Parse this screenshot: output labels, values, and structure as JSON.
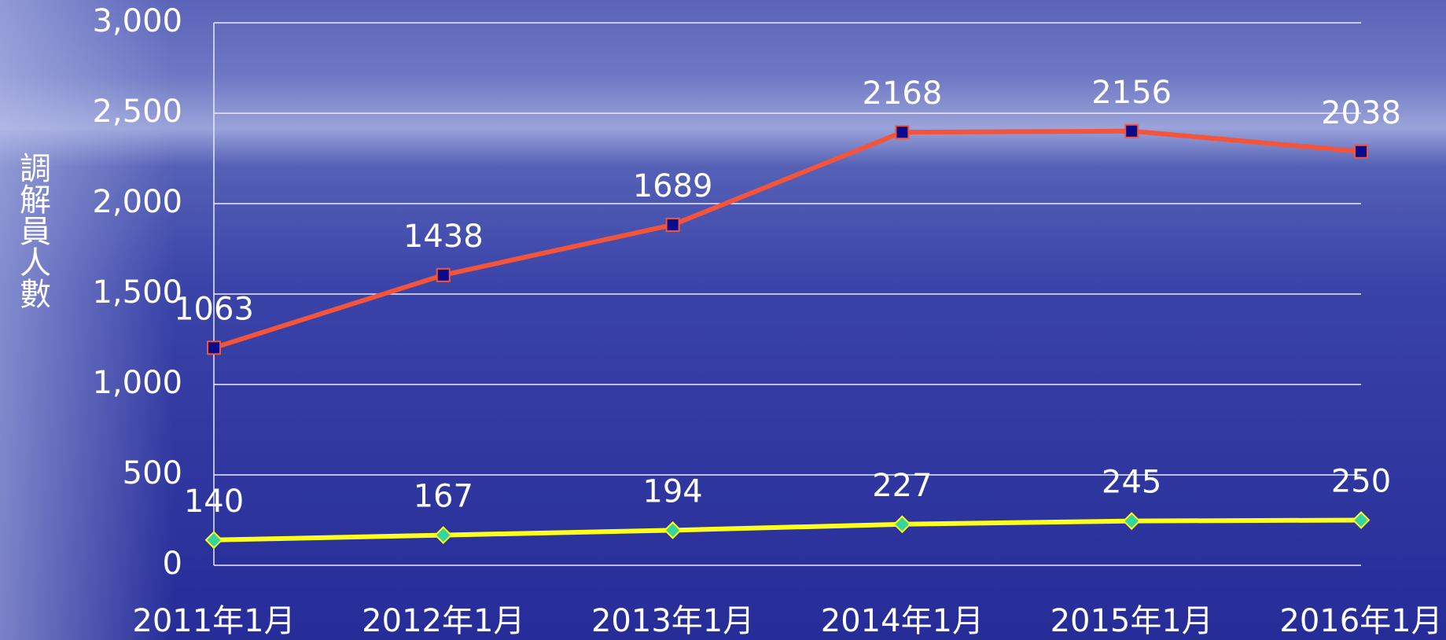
{
  "chart_data": {
    "type": "line",
    "stacked": true,
    "y_label": "調解員人數",
    "categories": [
      "2011年1月",
      "2012年1月",
      "2013年1月",
      "2014年1月",
      "2015年1月",
      "2016年1月"
    ],
    "series": [
      {
        "color": "#ffff1e",
        "marker": "diamond",
        "marker_color": "#33d6a0",
        "values": [
          140,
          167,
          194,
          227,
          245,
          250
        ]
      },
      {
        "color": "#f4553a",
        "marker": "square",
        "marker_color": "#0a0a8c",
        "values": [
          1063,
          1438,
          1689,
          2168,
          2156,
          2038
        ]
      }
    ],
    "ylim": [
      0,
      3000
    ],
    "yticks": [
      0,
      500,
      {
        "value": 1000,
        "label": "1,000"
      },
      {
        "value": 1500,
        "label": "1,500"
      },
      {
        "value": 2000,
        "label": "2,000"
      },
      {
        "value": 2500,
        "label": "2,500"
      },
      {
        "value": 3000,
        "label": "3,000"
      }
    ],
    "grid": true
  }
}
